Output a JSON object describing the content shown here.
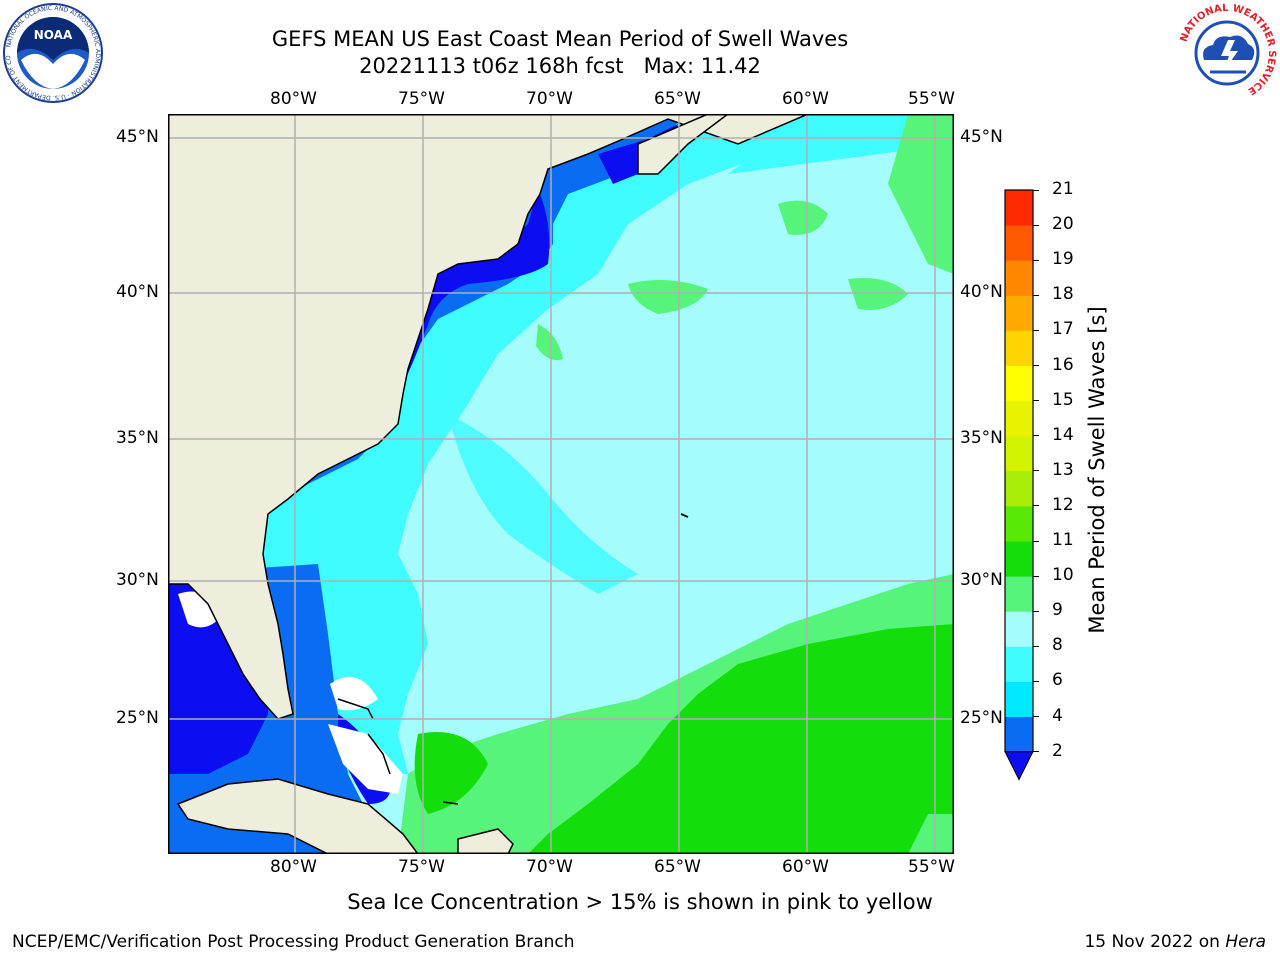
{
  "title": {
    "line1": "GEFS MEAN US East Coast Mean Period of Swell Waves",
    "line2": "20221113 t06z 168h fcst   Max: 11.42"
  },
  "map": {
    "lon_labels": [
      "80°W",
      "75°W",
      "70°W",
      "65°W",
      "60°W",
      "55°W"
    ],
    "lat_labels": [
      "45°N",
      "40°N",
      "35°N",
      "30°N",
      "25°N"
    ],
    "colors": {
      "land": "#efeedc",
      "c2_4": "#0a6cf2",
      "c4_6": "#00e8ff",
      "c6_8": "#3ffcff",
      "c8_9": "#a4fdfc",
      "c9_10": "#56f47a",
      "c10_11": "#14dd0c",
      "under2": "#0d0df2",
      "grid": "#b0b0b0"
    }
  },
  "colorbar": {
    "title": "Mean Period of Swell Waves [s]",
    "ticks": [
      "2",
      "4",
      "6",
      "8",
      "9",
      "10",
      "11",
      "12",
      "13",
      "14",
      "15",
      "16",
      "17",
      "18",
      "19",
      "20",
      "21"
    ],
    "colors": [
      "#0a6cf2",
      "#00e8ff",
      "#3ffcff",
      "#a4fdfc",
      "#56f47a",
      "#14dd0c",
      "#5ae805",
      "#a8ed08",
      "#d2f400",
      "#e9f300",
      "#ffff00",
      "#ffd500",
      "#ffaa00",
      "#ff8800",
      "#ff5a00",
      "#ff2a00"
    ],
    "under_color": "#0d0df2"
  },
  "note": "Sea Ice Concentration > 15% is shown in pink to yellow",
  "footer": {
    "left": "NCEP/EMC/Verification Post Processing Product Generation Branch",
    "date": "15 Nov 2022 on ",
    "host": "Hera"
  },
  "logos": {
    "noaa_text": "NOAA",
    "noaa_ring": "NATIONAL OCEANIC AND ATMOSPHERIC ADMINISTRATION · U.S. DEPARTMENT OF COMMERCE",
    "nws_ring": "NATIONAL WEATHER SERVICE"
  }
}
